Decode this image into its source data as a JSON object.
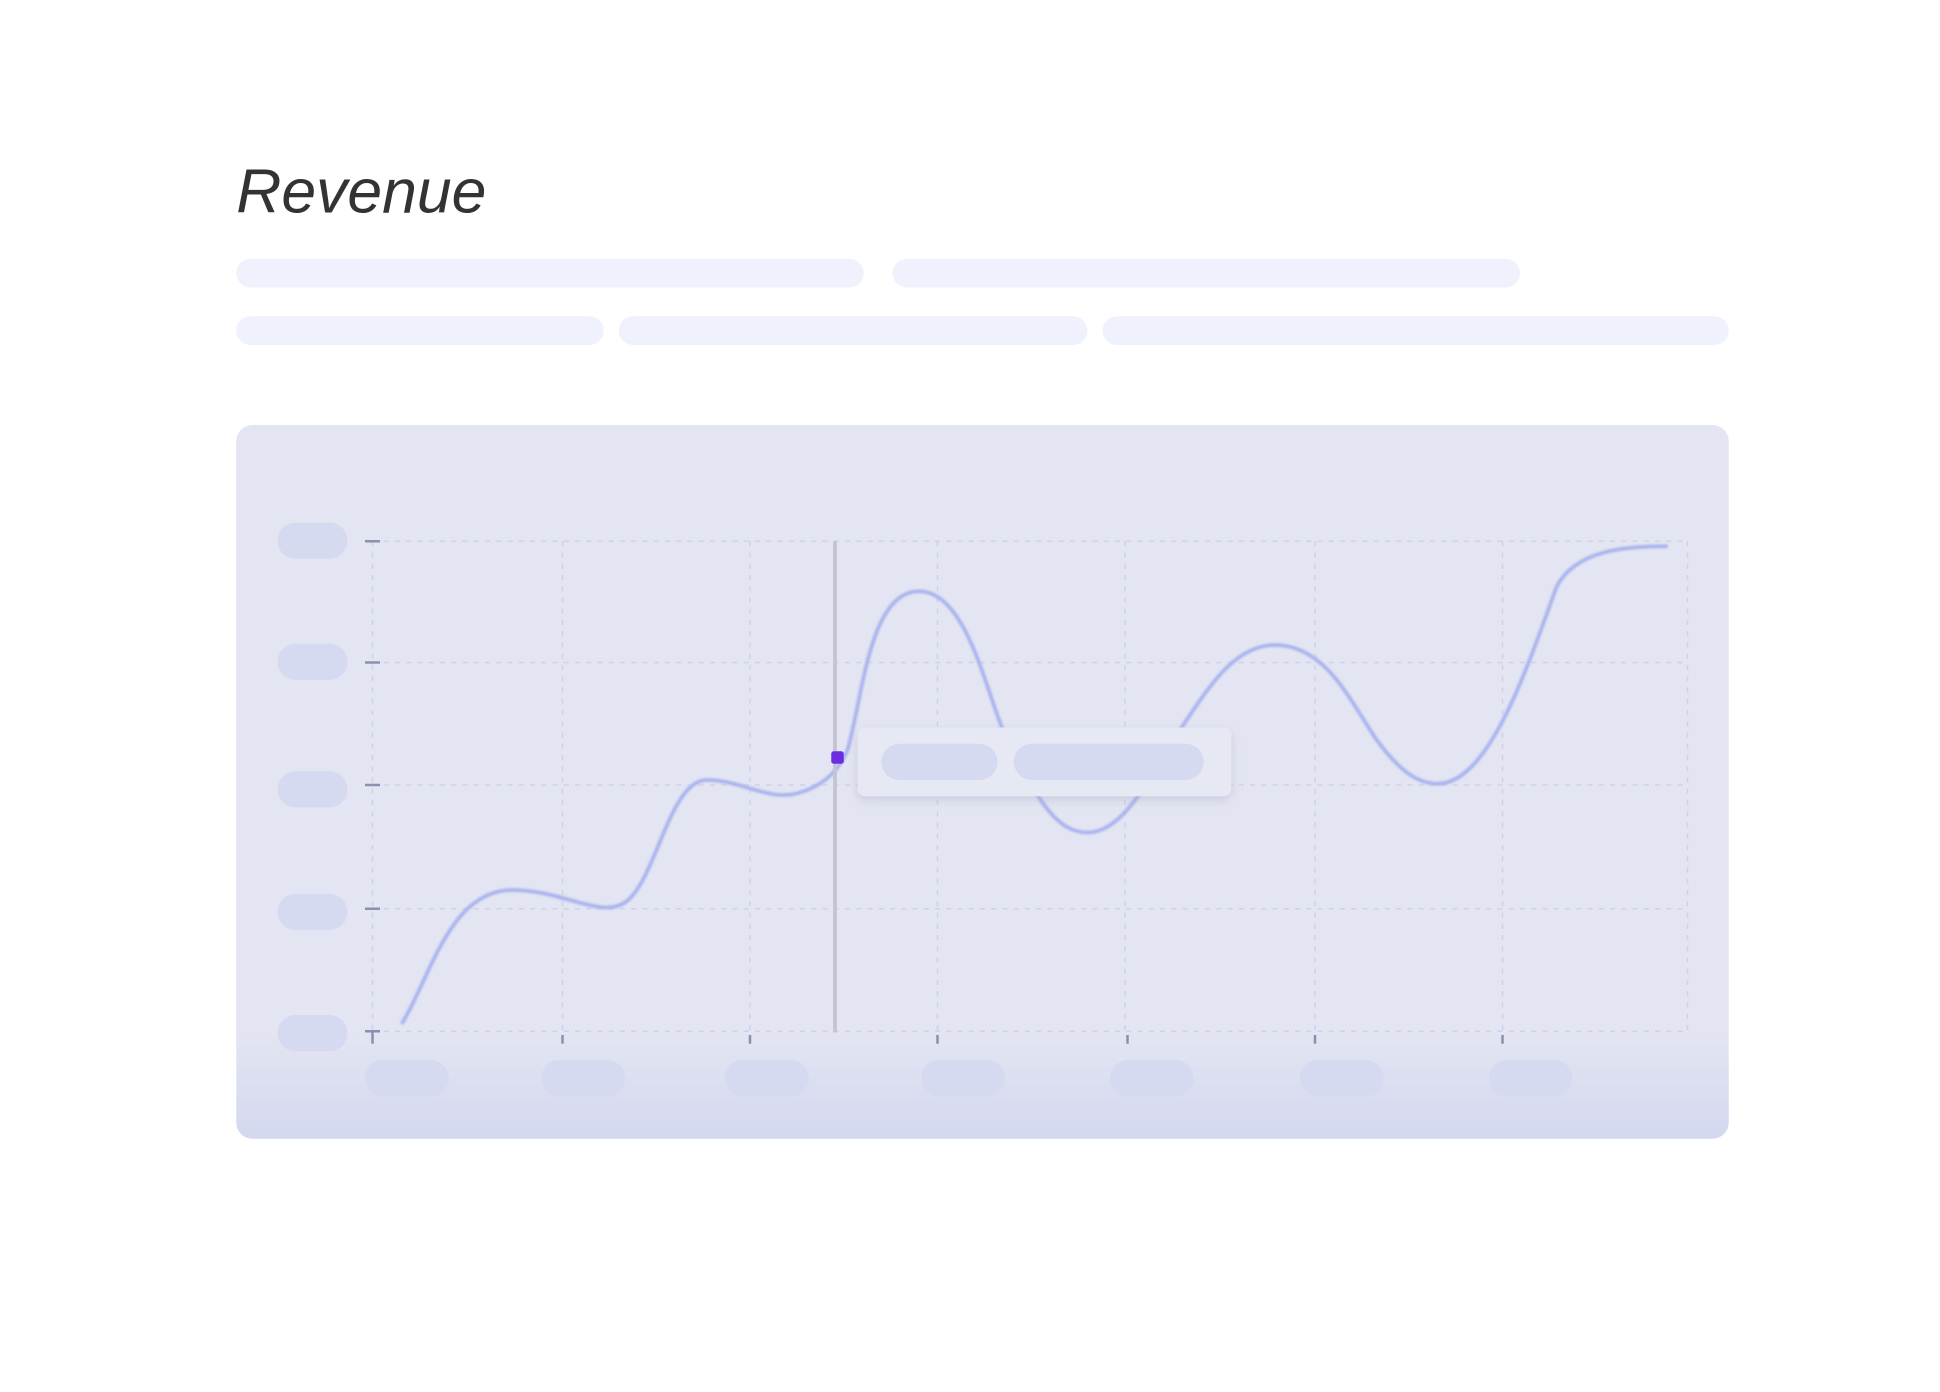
{
  "header": {
    "title": "Revenue"
  }
}
